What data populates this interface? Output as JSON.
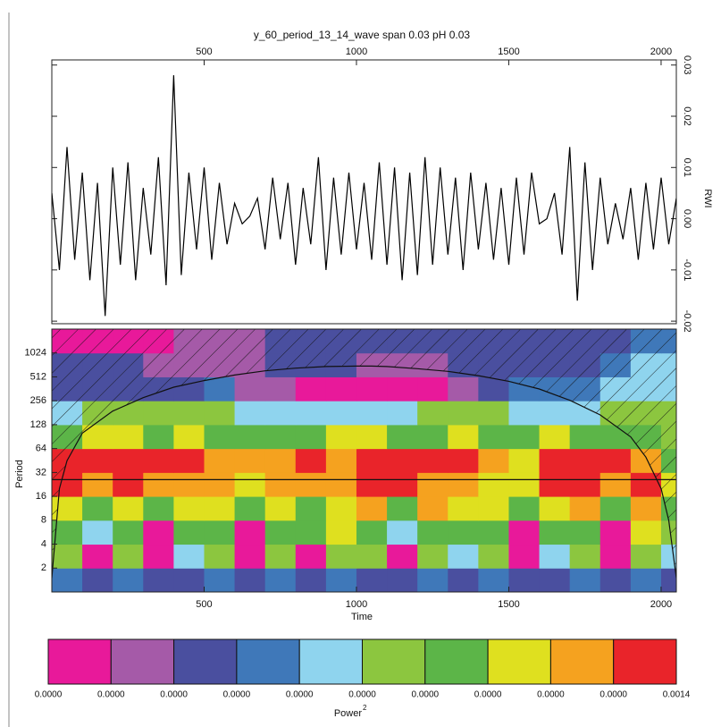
{
  "chart_data": [
    {
      "type": "line",
      "title": "y_60_period_13_14_wave span 0.03 pH 0.03",
      "ylabel": "RWI",
      "color": "#000000",
      "xlim": [
        0,
        2050
      ],
      "xticks": [
        500,
        1000,
        1500,
        2000
      ],
      "ylim": [
        -0.0205,
        0.031
      ],
      "yticks": [
        0.03,
        0.02,
        0.01,
        {
          "value": 0,
          "label": "0.00"
        },
        -0.01,
        -0.02
      ],
      "x": [
        0,
        25,
        50,
        75,
        100,
        125,
        150,
        175,
        200,
        225,
        250,
        275,
        300,
        325,
        350,
        375,
        400,
        425,
        450,
        475,
        500,
        525,
        550,
        575,
        600,
        625,
        650,
        675,
        700,
        725,
        750,
        775,
        800,
        825,
        850,
        875,
        900,
        925,
        950,
        975,
        1000,
        1025,
        1050,
        1075,
        1100,
        1125,
        1150,
        1175,
        1200,
        1225,
        1250,
        1275,
        1300,
        1325,
        1350,
        1375,
        1400,
        1425,
        1450,
        1475,
        1500,
        1525,
        1550,
        1575,
        1600,
        1625,
        1650,
        1675,
        1700,
        1725,
        1750,
        1775,
        1800,
        1825,
        1850,
        1875,
        1900,
        1925,
        1950,
        1975,
        2000,
        2025,
        2050
      ],
      "values": [
        0.005,
        -0.01,
        0.014,
        -0.008,
        0.009,
        -0.012,
        0.007,
        -0.019,
        0.01,
        -0.009,
        0.011,
        -0.012,
        0.006,
        -0.007,
        0.012,
        -0.013,
        0.028,
        -0.011,
        0.009,
        -0.006,
        0.01,
        -0.008,
        0.007,
        -0.005,
        0.003,
        -0.001,
        0.0005,
        0.004,
        -0.006,
        0.008,
        -0.004,
        0.007,
        -0.009,
        0.006,
        -0.005,
        0.012,
        -0.01,
        0.008,
        -0.007,
        0.009,
        -0.006,
        0.007,
        -0.008,
        0.011,
        -0.009,
        0.01,
        -0.012,
        0.009,
        -0.011,
        0.012,
        -0.009,
        0.01,
        -0.007,
        0.008,
        -0.01,
        0.009,
        -0.006,
        0.007,
        -0.008,
        0.006,
        -0.009,
        0.008,
        -0.007,
        0.009,
        -0.001,
        0.0,
        0.005,
        -0.007,
        0.014,
        -0.016,
        0.011,
        -0.01,
        0.008,
        -0.005,
        0.003,
        -0.004,
        0.006,
        -0.008,
        0.007,
        -0.006,
        0.008,
        -0.005,
        0.004
      ]
    },
    {
      "type": "heatmap",
      "xlabel": "Time",
      "ylabel": "Period",
      "log_y": true,
      "xlim": [
        0,
        2050
      ],
      "xticks": [
        500,
        1000,
        1500,
        2000
      ],
      "ylim": [
        1,
        2048
      ],
      "yticks": [
        2,
        4,
        8,
        16,
        32,
        64,
        128,
        256,
        512,
        1024
      ],
      "x_edges": [
        0,
        100,
        200,
        300,
        400,
        500,
        600,
        700,
        800,
        900,
        1000,
        1100,
        1200,
        1300,
        1400,
        1500,
        1600,
        1700,
        1800,
        1900,
        2000,
        2050
      ],
      "y_edges": [
        1,
        2,
        4,
        8,
        16,
        32,
        64,
        128,
        256,
        512,
        1024,
        2048
      ],
      "z": [
        [
          3,
          2,
          3,
          2,
          2,
          3,
          2,
          3,
          2,
          3,
          2,
          2,
          3,
          2,
          3,
          2,
          2,
          3,
          2,
          3,
          2
        ],
        [
          5,
          0,
          5,
          0,
          4,
          5,
          0,
          5,
          0,
          5,
          5,
          0,
          5,
          4,
          5,
          0,
          4,
          5,
          0,
          5,
          4
        ],
        [
          6,
          4,
          6,
          0,
          6,
          6,
          0,
          6,
          6,
          7,
          6,
          4,
          6,
          6,
          6,
          0,
          6,
          6,
          0,
          7,
          5
        ],
        [
          7,
          6,
          7,
          6,
          7,
          7,
          6,
          7,
          6,
          7,
          8,
          6,
          8,
          7,
          7,
          6,
          7,
          8,
          6,
          8,
          6
        ],
        [
          9,
          8,
          9,
          8,
          8,
          8,
          7,
          8,
          8,
          8,
          9,
          9,
          8,
          8,
          7,
          7,
          9,
          9,
          8,
          9,
          7
        ],
        [
          9,
          9,
          9,
          9,
          9,
          8,
          8,
          8,
          9,
          8,
          9,
          9,
          9,
          9,
          8,
          7,
          9,
          9,
          9,
          8,
          6
        ],
        [
          6,
          7,
          7,
          6,
          7,
          6,
          6,
          6,
          6,
          7,
          7,
          6,
          6,
          7,
          6,
          6,
          7,
          6,
          6,
          6,
          5
        ],
        [
          4,
          5,
          5,
          5,
          5,
          5,
          4,
          4,
          4,
          4,
          4,
          4,
          5,
          5,
          5,
          4,
          4,
          4,
          5,
          5,
          5
        ],
        [
          2,
          2,
          2,
          2,
          2,
          3,
          1,
          1,
          0,
          0,
          0,
          0,
          0,
          1,
          2,
          3,
          3,
          3,
          4,
          4,
          4
        ],
        [
          2,
          2,
          2,
          1,
          1,
          1,
          1,
          2,
          2,
          2,
          1,
          1,
          1,
          2,
          2,
          2,
          2,
          2,
          3,
          4,
          4
        ],
        [
          0,
          0,
          0,
          0,
          1,
          1,
          1,
          2,
          2,
          2,
          2,
          2,
          2,
          2,
          2,
          2,
          2,
          2,
          2,
          3,
          3
        ]
      ],
      "colors": [
        "#e8199a",
        "#a55aa8",
        "#4a4f9f",
        "#3f78b9",
        "#8fd4ee",
        "#8cc63f",
        "#5cb548",
        "#dfe01f",
        "#f5a21f",
        "#e9242a"
      ],
      "coi": {
        "x": [
          0,
          25,
          50,
          100,
          200,
          300,
          400,
          500,
          600,
          700,
          800,
          900,
          1000,
          1050,
          1100,
          1200,
          1300,
          1400,
          1500,
          1600,
          1700,
          1800,
          1900,
          1950,
          2000,
          2025,
          2050
        ],
        "values": [
          1.5,
          20,
          45,
          100,
          190,
          280,
          380,
          460,
          540,
          610,
          660,
          690,
          700,
          700,
          690,
          650,
          600,
          530,
          450,
          360,
          260,
          170,
          90,
          50,
          20,
          8,
          1.5
        ]
      },
      "reference_period": 26,
      "colorbar": {
        "labels": [
          "0.0000",
          "0.0000",
          "0.0000",
          "0.0000",
          "0.0000",
          "0.0000",
          "0.0000",
          "0.0000",
          "0.0000",
          "0.0000",
          "0.0014"
        ],
        "label": "Power",
        "label_exponent": "2"
      }
    }
  ]
}
